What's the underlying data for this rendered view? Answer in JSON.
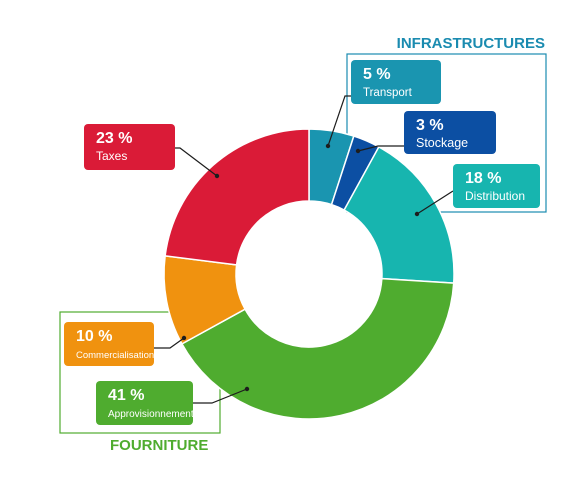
{
  "chart_data": {
    "type": "pie",
    "subtype": "donut",
    "slices": [
      {
        "key": "transport",
        "percent_label": "5 %",
        "label": "Transport",
        "value": 5,
        "color": "#1a95b0",
        "group": "infrastructures"
      },
      {
        "key": "stockage",
        "percent_label": "3 %",
        "label": "Stockage",
        "value": 3,
        "color": "#0c4fa3",
        "group": "infrastructures"
      },
      {
        "key": "distribution",
        "percent_label": "18 %",
        "label": "Distribution",
        "value": 18,
        "color": "#17b5af",
        "group": "infrastructures"
      },
      {
        "key": "approvisionnement",
        "percent_label": "41 %",
        "label": "Approvisionnement",
        "value": 41,
        "color": "#4fac2f",
        "group": "fourniture"
      },
      {
        "key": "commercialisation",
        "percent_label": "10 %",
        "label": "Commercialisation",
        "value": 10,
        "color": "#f0920f",
        "group": "fourniture"
      },
      {
        "key": "taxes",
        "percent_label": "23 %",
        "label": "Taxes",
        "value": 23,
        "color": "#da1b37",
        "group": ""
      }
    ],
    "groups": [
      {
        "key": "infrastructures",
        "label": "INFRASTRUCTURES",
        "color": "#1a8bb0"
      },
      {
        "key": "fourniture",
        "label": "FOURNITURE",
        "color": "#4fac2f"
      }
    ]
  }
}
